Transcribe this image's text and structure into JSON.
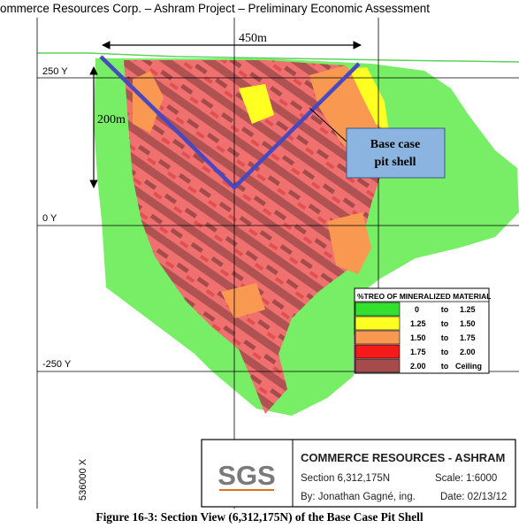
{
  "header": {
    "title": "ommerce Resources Corp. – Ashram Project – Preliminary Economic Assessment"
  },
  "section": {
    "axis_labels": {
      "top": "250 Y",
      "middle": "0 Y",
      "bottom": "-250 Y",
      "x": "536000 X"
    },
    "dimensions": {
      "width": "450m",
      "depth": "200m"
    },
    "callout": {
      "line1": "Base case",
      "line2": "pit shell"
    }
  },
  "legend": {
    "title": "%TREO OF MINERALIZED MATERIAL",
    "rows": [
      {
        "from": "0",
        "to_word": "to",
        "to": "1.25",
        "color": "#33e02e"
      },
      {
        "from": "1.25",
        "to_word": "to",
        "to": "1.50",
        "color": "#ffff22"
      },
      {
        "from": "1.50",
        "to_word": "to",
        "to": "1.75",
        "color": "#f99850"
      },
      {
        "from": "1.75",
        "to_word": "to",
        "to": "2.00",
        "color": "#f51a1a"
      },
      {
        "from": "2.00",
        "to_word": "to",
        "to": "Ceiling",
        "color": "#a64b4b"
      }
    ]
  },
  "title_block": {
    "logo": "SGS",
    "company": "COMMERCE RESOURCES - ASHRAM",
    "section": "Section 6,312,175N",
    "scale": "Scale: 1:6000",
    "author": "By: Jonathan Gagné, ing.",
    "date": "Date: 02/13/12"
  },
  "colors": {
    "low_grade": "#77ee66",
    "mid_grade": "#f07070",
    "high_grade": "#b05252",
    "pit_shell": "#4848c0",
    "callout_box": "#8cb4e0"
  },
  "caption": "Figure 16-3: Section View (6,312,175N) of the Base Case Pit Shell"
}
